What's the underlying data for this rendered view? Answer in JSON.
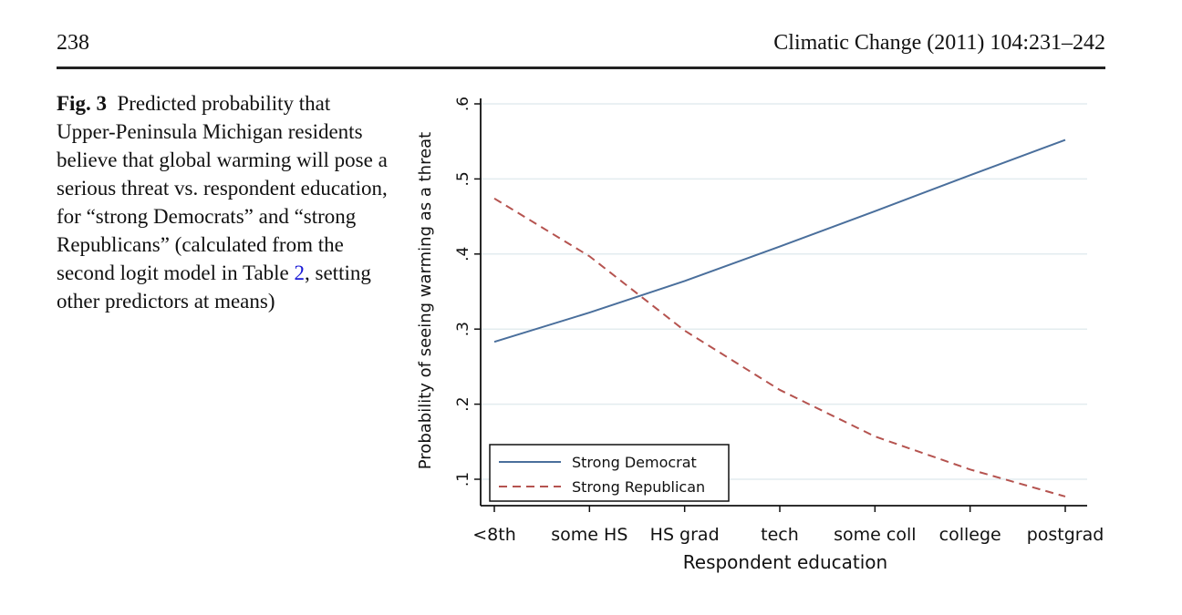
{
  "header": {
    "page_number": "238",
    "journal": "Climatic Change (2011) 104:231–242"
  },
  "caption": {
    "label": "Fig. 3",
    "text_before_ref": "Predicted probability that Upper-Peninsula Michigan residents believe that global warming will pose a serious threat vs. respondent education, for “strong Democrats” and “strong Republicans” (calculated from the second logit model in Table ",
    "table_ref": "2",
    "text_after_ref": ", setting other predictors at means)"
  },
  "chart_data": {
    "type": "line",
    "categories": [
      "<8th",
      "some HS",
      "HS grad",
      "tech",
      "some coll",
      "college",
      "postgrad"
    ],
    "xlabel": "Respondent education",
    "ylabel": "Probability of seeing warming as a threat",
    "ylim": [
      0.1,
      0.6
    ],
    "yticks": [
      0.1,
      0.2,
      0.3,
      0.4,
      0.5,
      0.6
    ],
    "ytick_labels": [
      ".1",
      ".2",
      ".3",
      ".4",
      ".5",
      ".6"
    ],
    "grid": true,
    "legend_position": "bottom-left",
    "series": [
      {
        "name": "Strong Democrat",
        "values": [
          0.283,
          0.322,
          0.364,
          0.41,
          0.457,
          0.505,
          0.552
        ],
        "color": "#4a6f9c",
        "style": "solid"
      },
      {
        "name": "Strong Republican",
        "values": [
          0.474,
          0.397,
          0.298,
          0.219,
          0.157,
          0.113,
          0.077
        ],
        "color": "#b5534f",
        "style": "dashed"
      }
    ]
  }
}
